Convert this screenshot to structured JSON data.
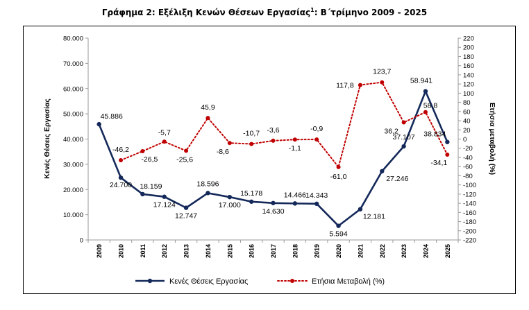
{
  "title": {
    "main": "Γράφημα 2: Εξέλιξη Κενών Θέσεων Εργασίας",
    "sup": "1",
    "suffix": ": Β΄τρίμηνο 2009 - 2025"
  },
  "colors": {
    "vacancies": "#14295a",
    "change": "#c00000",
    "axis": "#9a9a9a",
    "text": "#000000"
  },
  "chart_data": {
    "type": "line",
    "x": [
      "2009",
      "2010",
      "2011",
      "2012",
      "2013",
      "2014",
      "2015",
      "2016",
      "2017",
      "2018",
      "2019",
      "2020",
      "2021",
      "2022",
      "2023",
      "2024",
      "2025"
    ],
    "series": [
      {
        "name": "Κενές Θέσεις Εργασίας",
        "axis": "left",
        "style": "solid",
        "values": [
          45886,
          24700,
          18159,
          17124,
          12747,
          18596,
          17000,
          15178,
          14630,
          14466,
          14343,
          5594,
          12181,
          27246,
          37107,
          58941,
          38834
        ],
        "labels": [
          "45.886",
          "24.700",
          "18.159",
          "17.124",
          "12.747",
          "18.596",
          "17.000",
          "15.178",
          "14.630",
          "14.466",
          "14.343",
          "5.594",
          "12.181",
          "27.246",
          "37.107",
          "58.941",
          "38.834"
        ]
      },
      {
        "name": "Ετήσια Μεταβολή (%)",
        "axis": "right",
        "style": "dotted",
        "values": [
          null,
          -46.2,
          -26.5,
          -5.7,
          -25.6,
          45.9,
          -8.6,
          -10.7,
          -3.6,
          -1.1,
          -0.9,
          -61.0,
          117.8,
          123.7,
          36.2,
          58.8,
          -34.1
        ],
        "labels": [
          "",
          "-46,2",
          "-26,5",
          "-5,7",
          "-25,6",
          "45,9",
          "-8,6",
          "-10,7",
          "-3,6",
          "-1,1",
          "-0,9",
          "-61,0",
          "117,8",
          "123,7",
          "36,2",
          "58,8",
          "-34,1"
        ]
      }
    ],
    "ylabel": "Κενές Θέσεις Εργασίας",
    "y2label": "Ετήσια μεταβολή (%)",
    "ylim": [
      0,
      80000
    ],
    "y2lim": [
      -220,
      220
    ],
    "yticks": [
      "0",
      "10.000",
      "20.000",
      "30.000",
      "40.000",
      "50.000",
      "60.000",
      "70.000",
      "80.000"
    ],
    "y2ticks": [
      "-220",
      "-200",
      "-180",
      "-160",
      "-140",
      "-120",
      "-100",
      "-80",
      "-60",
      "-40",
      "-20",
      "0",
      "20",
      "40",
      "60",
      "80",
      "100",
      "120",
      "140",
      "160",
      "180",
      "200",
      "220"
    ],
    "grid": false,
    "legend": "bottom"
  }
}
